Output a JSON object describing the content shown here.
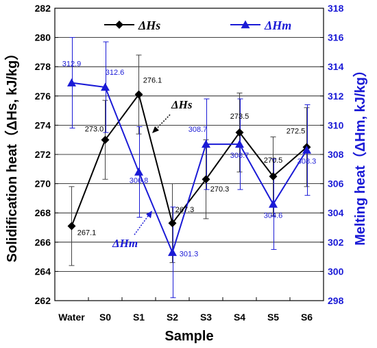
{
  "chart_data": {
    "type": "line",
    "categories": [
      "Water",
      "S0",
      "S1",
      "S2",
      "S3",
      "S4",
      "S5",
      "S6"
    ],
    "xlabel": "Sample",
    "ylabel_left": "Solidification heat（ΔHs, kJ/kg）",
    "ylabel_right": "Melting heat（ΔHm, kJ/kg）",
    "ylim_left": [
      262,
      282
    ],
    "ylim_right": [
      298,
      318
    ],
    "yticks_left": [
      262,
      264,
      266,
      268,
      270,
      272,
      274,
      276,
      278,
      280,
      282
    ],
    "yticks_right": [
      298,
      300,
      302,
      304,
      306,
      308,
      310,
      312,
      314,
      316,
      318
    ],
    "grid": true,
    "legend_position": "top",
    "colors": {
      "hs": "#000000",
      "hm": "#1a1ad6"
    },
    "series": [
      {
        "name": "ΔHs",
        "axis": "left",
        "marker": "diamond",
        "values": [
          267.1,
          273.0,
          276.1,
          267.3,
          270.3,
          273.5,
          270.5,
          272.5
        ],
        "errors": [
          2.7,
          2.7,
          2.7,
          2.7,
          2.7,
          2.7,
          2.7,
          2.7
        ],
        "labels": [
          "267.1",
          "273.0",
          "276.1",
          "267.3",
          "270.3",
          "273.5",
          "270.5",
          "272.5"
        ]
      },
      {
        "name": "ΔHm",
        "axis": "right",
        "marker": "triangle",
        "values": [
          312.9,
          312.6,
          306.8,
          301.3,
          308.7,
          308.7,
          304.6,
          308.3
        ],
        "errors": [
          3.1,
          3.1,
          3.1,
          3.1,
          3.1,
          3.1,
          3.1,
          3.1
        ],
        "labels": [
          "312.9",
          "312.6",
          "306.8",
          "301.3",
          "308.7",
          "308.7",
          "304.6",
          "308.3"
        ]
      }
    ],
    "annotations": [
      {
        "text": "ΔHs",
        "series": "ΔHs"
      },
      {
        "text": "ΔHm",
        "series": "ΔHm"
      }
    ]
  }
}
